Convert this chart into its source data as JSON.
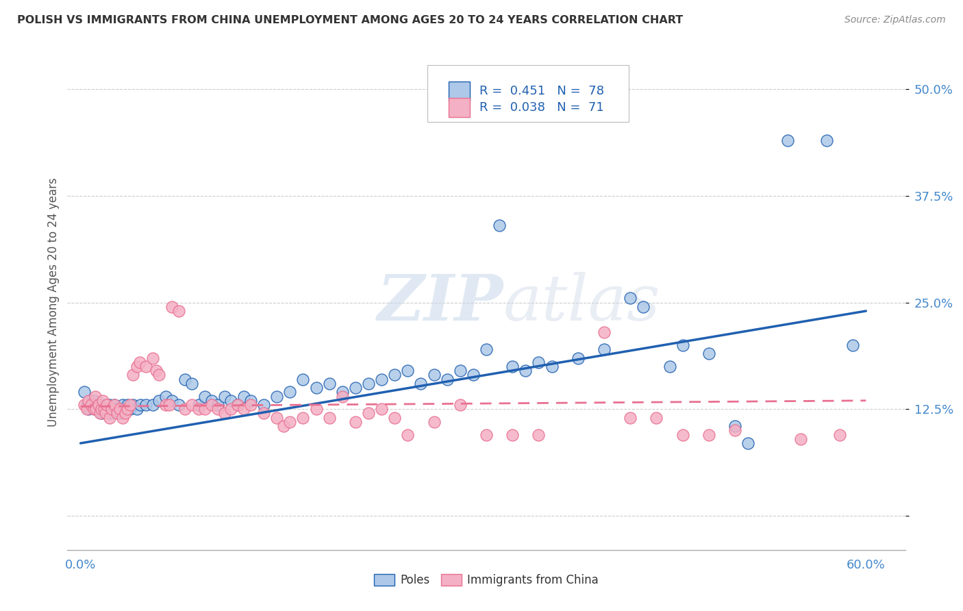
{
  "title": "POLISH VS IMMIGRANTS FROM CHINA UNEMPLOYMENT AMONG AGES 20 TO 24 YEARS CORRELATION CHART",
  "source": "Source: ZipAtlas.com",
  "ylabel": "Unemployment Among Ages 20 to 24 years",
  "poles_color": "#adc8e8",
  "china_color": "#f4b0c4",
  "poles_line_color": "#2060b0",
  "china_line_color": "#e87090",
  "poles_R": 0.451,
  "poles_N": 78,
  "china_R": 0.038,
  "china_N": 71,
  "watermark_zip": "ZIP",
  "watermark_atlas": "atlas",
  "legend_label_poles": "Poles",
  "legend_label_china": "Immigrants from China",
  "ytick_color": "#4488cc",
  "xtick_left_color": "#4488cc",
  "xtick_right_color": "#4488cc"
}
